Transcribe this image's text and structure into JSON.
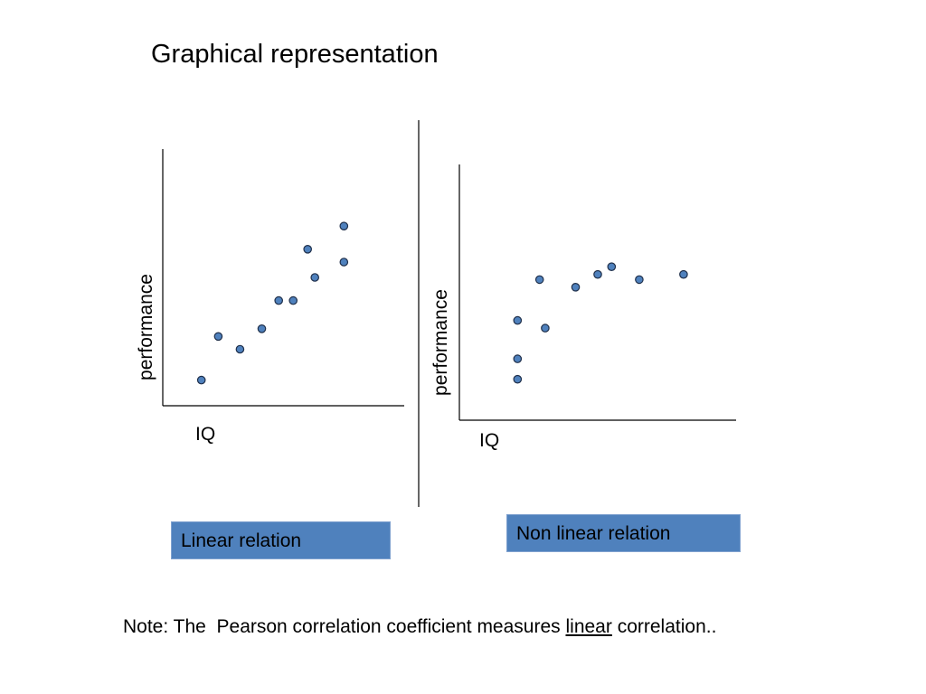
{
  "slide": {
    "title": "Graphical representation",
    "note": {
      "prefix": "Note: The  Pearson correlation coefficient measures ",
      "emphasis": "linear",
      "suffix": " correlation.."
    }
  },
  "colors": {
    "point_fill": "#4f81bd",
    "point_stroke": "#1f2f4a",
    "box_fill": "#4f81bd",
    "axis": "#000000"
  },
  "chart_data": [
    {
      "type": "scatter",
      "title": "",
      "xlabel": "IQ",
      "ylabel": "performance",
      "caption": "Linear relation",
      "ticks": false,
      "grid": false,
      "xlim": [
        0,
        10
      ],
      "ylim": [
        0,
        10
      ],
      "x": [
        1.6,
        2.3,
        3.2,
        4.1,
        4.8,
        5.4,
        6.0,
        6.3,
        7.5,
        7.5
      ],
      "y": [
        1.0,
        2.7,
        2.2,
        3.0,
        4.1,
        4.1,
        6.1,
        5.0,
        5.6,
        7.0
      ]
    },
    {
      "type": "scatter",
      "title": "",
      "xlabel": "IQ",
      "ylabel": "performance",
      "caption": "Non linear relation",
      "ticks": false,
      "grid": false,
      "xlim": [
        0,
        10
      ],
      "ylim": [
        0,
        10
      ],
      "x": [
        2.1,
        2.1,
        2.1,
        2.9,
        3.1,
        4.2,
        5.0,
        5.5,
        6.5,
        8.1
      ],
      "y": [
        1.6,
        2.4,
        3.9,
        5.5,
        3.6,
        5.2,
        5.7,
        6.0,
        5.5,
        5.7
      ]
    }
  ]
}
